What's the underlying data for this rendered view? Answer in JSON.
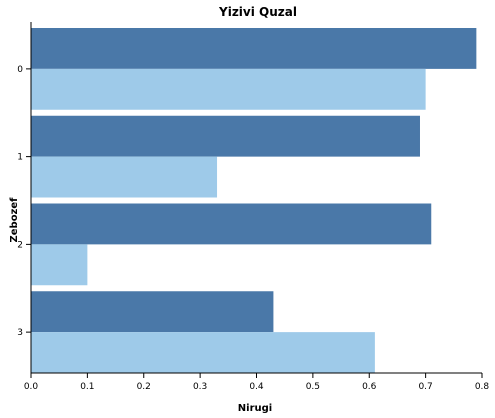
{
  "chart_data": {
    "type": "bar",
    "orientation": "horizontal",
    "title": "Yizivi Quzal",
    "xlabel": "Nirugi",
    "ylabel": "Zebozef",
    "categories": [
      "0",
      "1",
      "2",
      "3"
    ],
    "xlim": [
      0,
      0.8
    ],
    "xticks": [
      "0.0",
      "0.1",
      "0.2",
      "0.3",
      "0.4",
      "0.5",
      "0.6",
      "0.7",
      "0.8"
    ],
    "grid": false,
    "legend": "none",
    "series": [
      {
        "values": [
          0.79,
          0.69,
          0.71,
          0.43
        ],
        "color": "#4a78a8"
      },
      {
        "values": [
          0.7,
          0.33,
          0.1,
          0.61
        ],
        "color": "#9ecae9"
      }
    ]
  }
}
